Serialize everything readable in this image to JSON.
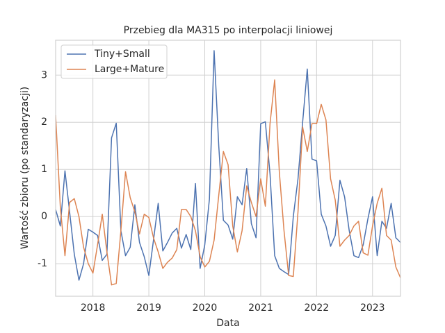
{
  "chart_data": {
    "type": "line",
    "title": "Przebieg dla MA315 po interpolacji liniowej",
    "xlabel": "Data",
    "ylabel": "Wartość zbioru (po standaryzacji)",
    "x": [
      2017.333,
      2017.417,
      2017.5,
      2017.583,
      2017.667,
      2017.75,
      2017.833,
      2017.917,
      2018.0,
      2018.083,
      2018.167,
      2018.25,
      2018.333,
      2018.417,
      2018.5,
      2018.583,
      2018.667,
      2018.75,
      2018.833,
      2018.917,
      2019.0,
      2019.083,
      2019.167,
      2019.25,
      2019.333,
      2019.417,
      2019.5,
      2019.583,
      2019.667,
      2019.75,
      2019.833,
      2019.917,
      2020.0,
      2020.083,
      2020.167,
      2020.25,
      2020.333,
      2020.417,
      2020.5,
      2020.583,
      2020.667,
      2020.75,
      2020.833,
      2020.917,
      2021.0,
      2021.083,
      2021.167,
      2021.25,
      2021.333,
      2021.417,
      2021.5,
      2021.583,
      2021.667,
      2021.75,
      2021.833,
      2021.917,
      2022.0,
      2022.083,
      2022.167,
      2022.25,
      2022.333,
      2022.417,
      2022.5,
      2022.583,
      2022.667,
      2022.75,
      2022.833,
      2022.917,
      2023.0,
      2023.083,
      2023.167,
      2023.25,
      2023.333,
      2023.417,
      2023.5
    ],
    "series": [
      {
        "name": "Tiny+Small",
        "color": "#4c72b0",
        "values": [
          0.15,
          -0.2,
          0.97,
          0.1,
          -0.8,
          -1.35,
          -1.0,
          -0.27,
          -0.33,
          -0.4,
          -0.93,
          -0.8,
          1.67,
          1.98,
          -0.3,
          -0.83,
          -0.65,
          0.25,
          -0.55,
          -0.85,
          -1.25,
          -0.5,
          0.28,
          -0.73,
          -0.55,
          -0.35,
          -0.25,
          -0.67,
          -0.38,
          -0.7,
          0.7,
          -1.1,
          -0.6,
          0.37,
          3.52,
          1.5,
          -0.08,
          -0.18,
          -0.48,
          0.42,
          0.25,
          1.02,
          -0.15,
          -0.45,
          1.97,
          2.01,
          0.9,
          -0.83,
          -1.1,
          -1.17,
          -1.23,
          0.0,
          0.8,
          2.0,
          3.13,
          1.22,
          1.18,
          0.05,
          -0.2,
          -0.63,
          -0.4,
          0.77,
          0.42,
          -0.3,
          -0.83,
          -0.87,
          -0.6,
          -0.05,
          0.42,
          -0.83,
          -0.1,
          -0.25,
          0.28,
          -0.45,
          -0.55
        ]
      },
      {
        "name": "Large+Mature",
        "color": "#dd8452",
        "values": [
          2.15,
          0.2,
          -0.83,
          0.3,
          0.38,
          0.0,
          -0.65,
          -1.0,
          -1.2,
          -0.6,
          0.05,
          -0.75,
          -1.45,
          -1.42,
          -0.3,
          0.95,
          0.4,
          0.1,
          -0.37,
          0.05,
          -0.02,
          -0.45,
          -0.75,
          -1.1,
          -0.97,
          -0.88,
          -0.7,
          0.15,
          0.15,
          0.0,
          -0.3,
          -0.85,
          -1.07,
          -0.95,
          -0.5,
          0.45,
          1.38,
          1.1,
          -0.2,
          -0.75,
          -0.3,
          0.65,
          0.3,
          0.0,
          0.8,
          0.22,
          1.97,
          2.9,
          0.95,
          -0.3,
          -1.25,
          -1.27,
          0.1,
          1.9,
          1.38,
          1.97,
          1.97,
          2.38,
          2.05,
          0.8,
          0.35,
          -0.63,
          -0.5,
          -0.4,
          -0.2,
          -0.1,
          -0.77,
          -0.82,
          -0.2,
          0.28,
          0.6,
          -0.4,
          -0.5,
          -1.07,
          -1.3
        ]
      }
    ],
    "xlim": [
      2017.333,
      2023.5
    ],
    "xticks": [
      2018,
      2019,
      2020,
      2021,
      2022,
      2023
    ],
    "ylim": [
      -1.69,
      3.74
    ],
    "yticks": [
      -1,
      0,
      1,
      2,
      3
    ],
    "grid": true,
    "legend": "upper left"
  }
}
